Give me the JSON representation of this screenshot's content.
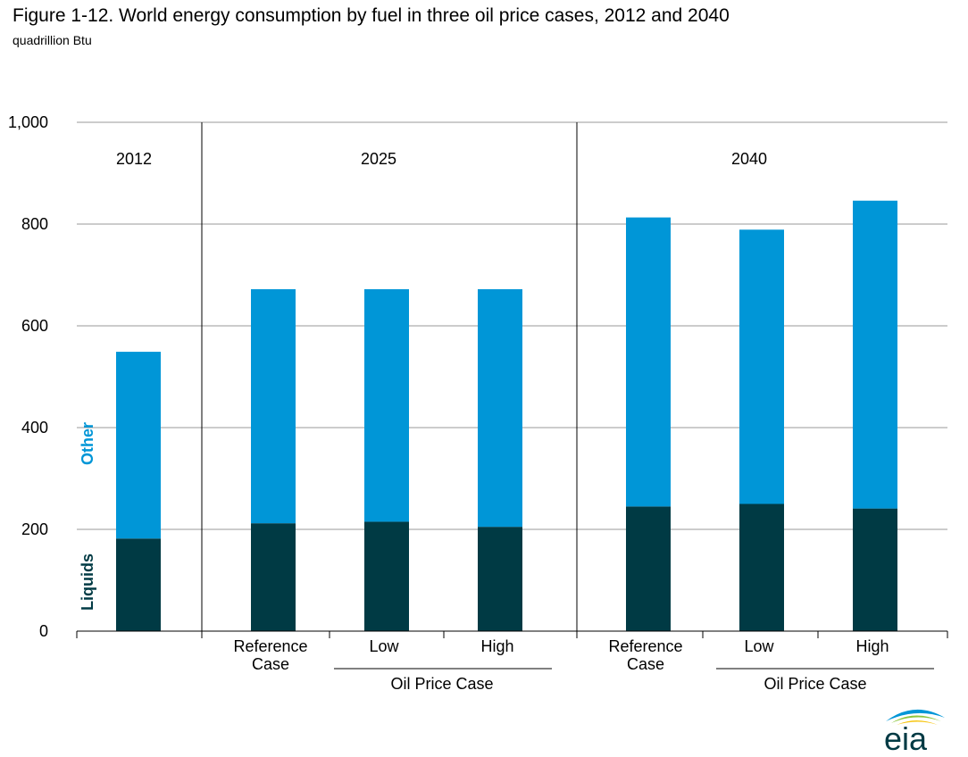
{
  "title": "Figure 1-12. World energy consumption by fuel in three oil price cases, 2012 and 2040",
  "subtitle": "quadrillion Btu",
  "logo_text": "eia",
  "chart_data": {
    "type": "bar",
    "stacked": true,
    "ylim": [
      0,
      1000
    ],
    "yticks": [
      0,
      200,
      400,
      600,
      800,
      1000
    ],
    "ytick_labels": [
      "0",
      "200",
      "400",
      "600",
      "800",
      "1,000"
    ],
    "grid": true,
    "groups": [
      {
        "label": "2012",
        "case_group_label": ""
      },
      {
        "label": "2025",
        "case_group_label": "Oil Price Case"
      },
      {
        "label": "2040",
        "case_group_label": "Oil Price Case"
      }
    ],
    "categories": [
      {
        "group": 0,
        "label": ""
      },
      {
        "group": 1,
        "label": "Reference Case"
      },
      {
        "group": 1,
        "label": "Low"
      },
      {
        "group": 1,
        "label": "High"
      },
      {
        "group": 2,
        "label": "Reference Case"
      },
      {
        "group": 2,
        "label": "Low"
      },
      {
        "group": 2,
        "label": "High"
      }
    ],
    "series": [
      {
        "name": "Liquids",
        "color": "#003a44",
        "values": [
          182,
          212,
          215,
          205,
          245,
          250,
          241
        ]
      },
      {
        "name": "Other",
        "color": "#0096d7",
        "values": [
          367,
          460,
          457,
          467,
          568,
          539,
          605
        ]
      }
    ]
  }
}
